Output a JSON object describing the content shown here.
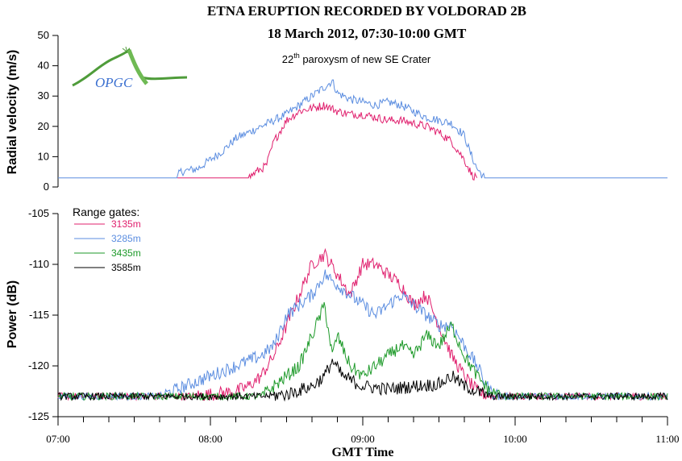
{
  "title_line1": "ETNA ERUPTION RECORDED BY VOLDORAD 2B",
  "title_line2": "18 March 2012, 07:30-10:00 GMT",
  "subtitle": {
    "prefix": "22",
    "superscript": "th",
    "rest": " paroxysm of new SE Crater"
  },
  "logo_text": "OPGC",
  "xlabel": "GMT Time",
  "x_tick_labels": [
    "07:00",
    "08:00",
    "09:00",
    "10:00",
    "11:00"
  ],
  "colors": {
    "c3135": "#e0206e",
    "c3285": "#5b8de0",
    "c3435": "#1e9a2a",
    "c3585": "#000000",
    "logo_green": "#4f9c3a",
    "logo_blue": "#3a6fd0"
  },
  "chart_data": [
    {
      "type": "line",
      "name": "velocity-panel",
      "ylabel": "Radial velocity (m/s)",
      "ylim": [
        0,
        50
      ],
      "y_ticks": [
        0,
        10,
        20,
        30,
        40,
        50
      ],
      "xlim": [
        "07:00",
        "11:00"
      ],
      "series": [
        {
          "name": "3285m",
          "color": "#5b8de0",
          "points": [
            [
              "07:00",
              3
            ],
            [
              "07:47",
              3
            ],
            [
              "07:48",
              5
            ],
            [
              "07:55",
              6
            ],
            [
              "08:00",
              9
            ],
            [
              "08:05",
              12
            ],
            [
              "08:10",
              16
            ],
            [
              "08:15",
              18
            ],
            [
              "08:20",
              20
            ],
            [
              "08:25",
              22
            ],
            [
              "08:30",
              24
            ],
            [
              "08:35",
              27
            ],
            [
              "08:40",
              30
            ],
            [
              "08:45",
              33
            ],
            [
              "08:48",
              35
            ],
            [
              "08:50",
              31
            ],
            [
              "08:55",
              29
            ],
            [
              "09:00",
              28
            ],
            [
              "09:05",
              27
            ],
            [
              "09:10",
              28
            ],
            [
              "09:15",
              27
            ],
            [
              "09:20",
              25
            ],
            [
              "09:25",
              23
            ],
            [
              "09:30",
              22
            ],
            [
              "09:35",
              21
            ],
            [
              "09:40",
              17
            ],
            [
              "09:42",
              12
            ],
            [
              "09:45",
              6
            ],
            [
              "09:48",
              3
            ],
            [
              "11:00",
              3
            ]
          ]
        },
        {
          "name": "3135m",
          "color": "#e0206e",
          "points": [
            [
              "07:47",
              3
            ],
            [
              "08:15",
              3
            ],
            [
              "08:18",
              5
            ],
            [
              "08:22",
              7
            ],
            [
              "08:25",
              15
            ],
            [
              "08:30",
              22
            ],
            [
              "08:35",
              25
            ],
            [
              "08:40",
              26
            ],
            [
              "08:45",
              27
            ],
            [
              "08:50",
              25
            ],
            [
              "08:55",
              24
            ],
            [
              "09:00",
              24
            ],
            [
              "09:05",
              23
            ],
            [
              "09:10",
              22
            ],
            [
              "09:15",
              22
            ],
            [
              "09:20",
              21
            ],
            [
              "09:25",
              20
            ],
            [
              "09:30",
              18
            ],
            [
              "09:35",
              15
            ],
            [
              "09:40",
              9
            ],
            [
              "09:43",
              4
            ],
            [
              "09:45",
              3
            ]
          ]
        }
      ]
    },
    {
      "type": "line",
      "name": "power-panel",
      "ylabel": "Power (dB)",
      "ylim": [
        -125,
        -105
      ],
      "y_ticks": [
        -125,
        -120,
        -115,
        -110,
        -105
      ],
      "xlim": [
        "07:00",
        "11:00"
      ],
      "legend_title": "Range gates:",
      "legend_position": "top-left",
      "series": [
        {
          "name": "3135m",
          "color": "#e0206e",
          "points": [
            [
              "07:00",
              -123
            ],
            [
              "07:50",
              -123
            ],
            [
              "08:00",
              -122.8
            ],
            [
              "08:10",
              -122.5
            ],
            [
              "08:15",
              -122
            ],
            [
              "08:20",
              -121
            ],
            [
              "08:25",
              -119
            ],
            [
              "08:30",
              -116
            ],
            [
              "08:35",
              -113
            ],
            [
              "08:40",
              -110
            ],
            [
              "08:45",
              -109
            ],
            [
              "08:50",
              -111
            ],
            [
              "08:55",
              -113
            ],
            [
              "09:00",
              -110
            ],
            [
              "09:05",
              -110
            ],
            [
              "09:10",
              -111
            ],
            [
              "09:15",
              -112
            ],
            [
              "09:20",
              -114
            ],
            [
              "09:25",
              -113
            ],
            [
              "09:30",
              -116
            ],
            [
              "09:35",
              -119
            ],
            [
              "09:40",
              -121
            ],
            [
              "09:45",
              -122.5
            ],
            [
              "09:50",
              -123
            ],
            [
              "11:00",
              -123
            ]
          ]
        },
        {
          "name": "3285m",
          "color": "#5b8de0",
          "points": [
            [
              "07:00",
              -123
            ],
            [
              "07:40",
              -123
            ],
            [
              "07:50",
              -122
            ],
            [
              "08:00",
              -121
            ],
            [
              "08:10",
              -120
            ],
            [
              "08:20",
              -119
            ],
            [
              "08:25",
              -118
            ],
            [
              "08:30",
              -115
            ],
            [
              "08:35",
              -114
            ],
            [
              "08:40",
              -113
            ],
            [
              "08:45",
              -111
            ],
            [
              "08:50",
              -112
            ],
            [
              "08:55",
              -113
            ],
            [
              "09:00",
              -114
            ],
            [
              "09:05",
              -115
            ],
            [
              "09:10",
              -114
            ],
            [
              "09:15",
              -113
            ],
            [
              "09:20",
              -114
            ],
            [
              "09:25",
              -115
            ],
            [
              "09:30",
              -116
            ],
            [
              "09:35",
              -116
            ],
            [
              "09:40",
              -118
            ],
            [
              "09:45",
              -120
            ],
            [
              "09:50",
              -122.5
            ],
            [
              "09:55",
              -123
            ],
            [
              "11:00",
              -123
            ]
          ]
        },
        {
          "name": "3435m",
          "color": "#1e9a2a",
          "points": [
            [
              "07:00",
              -123
            ],
            [
              "08:20",
              -123
            ],
            [
              "08:25",
              -122
            ],
            [
              "08:30",
              -121
            ],
            [
              "08:35",
              -120
            ],
            [
              "08:40",
              -117
            ],
            [
              "08:45",
              -114
            ],
            [
              "08:48",
              -119
            ],
            [
              "08:50",
              -117
            ],
            [
              "08:55",
              -120
            ],
            [
              "09:00",
              -121
            ],
            [
              "09:05",
              -120
            ],
            [
              "09:10",
              -119
            ],
            [
              "09:15",
              -118
            ],
            [
              "09:20",
              -119
            ],
            [
              "09:25",
              -117
            ],
            [
              "09:30",
              -118
            ],
            [
              "09:35",
              -116
            ],
            [
              "09:40",
              -119
            ],
            [
              "09:45",
              -121
            ],
            [
              "09:50",
              -122.5
            ],
            [
              "09:55",
              -123
            ],
            [
              "11:00",
              -123
            ]
          ]
        },
        {
          "name": "3585m",
          "color": "#000000",
          "points": [
            [
              "07:00",
              -123
            ],
            [
              "08:20",
              -123
            ],
            [
              "08:30",
              -122.8
            ],
            [
              "08:40",
              -122
            ],
            [
              "08:45",
              -121
            ],
            [
              "08:48",
              -119.5
            ],
            [
              "08:52",
              -121
            ],
            [
              "09:00",
              -122
            ],
            [
              "09:10",
              -122.3
            ],
            [
              "09:20",
              -122
            ],
            [
              "09:30",
              -121.8
            ],
            [
              "09:35",
              -121
            ],
            [
              "09:40",
              -122
            ],
            [
              "09:45",
              -122.5
            ],
            [
              "09:50",
              -123
            ],
            [
              "11:00",
              -123
            ]
          ]
        }
      ]
    }
  ]
}
